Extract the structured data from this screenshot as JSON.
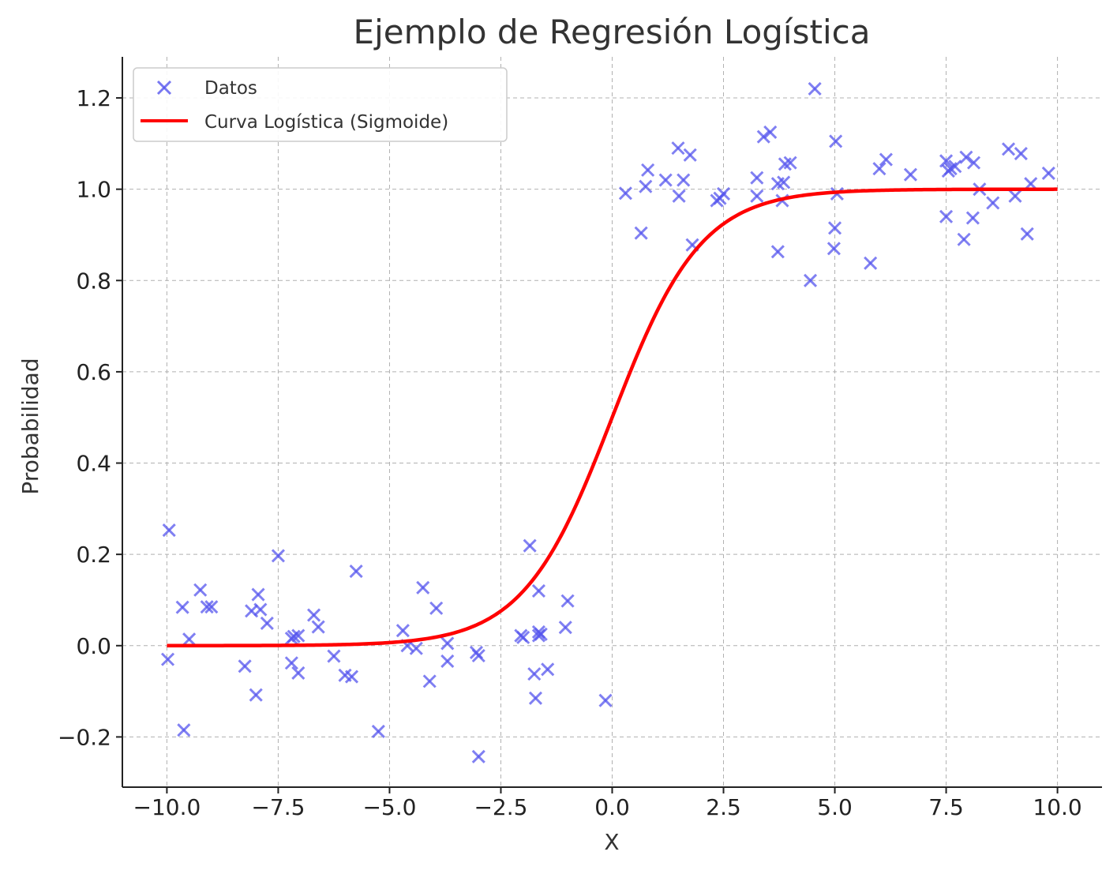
{
  "chart_data": {
    "type": "scatter",
    "title": "Ejemplo de Regresión Logística",
    "xlabel": "X",
    "ylabel": "Probabilidad",
    "xlim": [
      -11,
      11
    ],
    "ylim": [
      -0.31,
      1.29
    ],
    "xticks": [
      -10.0,
      -7.5,
      -5.0,
      -2.5,
      0.0,
      2.5,
      5.0,
      7.5,
      10.0
    ],
    "xtick_labels": [
      "−10.0",
      "−7.5",
      "−5.0",
      "−2.5",
      "0.0",
      "2.5",
      "5.0",
      "7.5",
      "10.0"
    ],
    "yticks": [
      -0.2,
      0.0,
      0.2,
      0.4,
      0.6,
      0.8,
      1.0,
      1.2
    ],
    "ytick_labels": [
      "−0.2",
      "0.0",
      "0.2",
      "0.4",
      "0.6",
      "0.8",
      "1.0",
      "1.2"
    ],
    "grid": true,
    "legend_position": "upper-left",
    "series": [
      {
        "name": "Datos",
        "type": "scatter",
        "marker": "x",
        "color": "#5555ee",
        "points": [
          [
            -9.95,
            0.253
          ],
          [
            -9.98,
            -0.03
          ],
          [
            -9.65,
            0.084
          ],
          [
            -9.62,
            -0.185
          ],
          [
            -9.5,
            0.014
          ],
          [
            -9.25,
            0.122
          ],
          [
            -9.1,
            0.085
          ],
          [
            -9.0,
            0.085
          ],
          [
            -8.25,
            -0.045
          ],
          [
            -8.1,
            0.076
          ],
          [
            -8.0,
            -0.108
          ],
          [
            -7.95,
            0.112
          ],
          [
            -7.9,
            0.079
          ],
          [
            -7.75,
            0.049
          ],
          [
            -7.5,
            0.197
          ],
          [
            -7.2,
            0.016
          ],
          [
            -7.2,
            -0.038
          ],
          [
            -7.15,
            0.02
          ],
          [
            -7.05,
            0.022
          ],
          [
            -7.05,
            -0.06
          ],
          [
            -6.7,
            0.067
          ],
          [
            -6.6,
            0.041
          ],
          [
            -6.25,
            -0.023
          ],
          [
            -6.0,
            -0.065
          ],
          [
            -5.85,
            -0.068
          ],
          [
            -5.75,
            0.163
          ],
          [
            -5.25,
            -0.188
          ],
          [
            -4.7,
            0.033
          ],
          [
            -4.6,
            0.0
          ],
          [
            -4.4,
            -0.006
          ],
          [
            -4.25,
            0.127
          ],
          [
            -4.1,
            -0.078
          ],
          [
            -3.95,
            0.082
          ],
          [
            -3.7,
            0.005
          ],
          [
            -3.7,
            -0.034
          ],
          [
            -3.05,
            -0.015
          ],
          [
            -3.0,
            -0.022
          ],
          [
            -3.0,
            -0.243
          ],
          [
            -2.05,
            0.022
          ],
          [
            -2.0,
            0.018
          ],
          [
            -1.85,
            0.219
          ],
          [
            -1.75,
            -0.062
          ],
          [
            -1.72,
            -0.115
          ],
          [
            -1.65,
            0.12
          ],
          [
            -1.65,
            0.03
          ],
          [
            -1.65,
            0.022
          ],
          [
            -1.6,
            0.025
          ],
          [
            -1.45,
            -0.052
          ],
          [
            -1.05,
            0.04
          ],
          [
            -1.0,
            0.098
          ],
          [
            -0.15,
            -0.12
          ],
          [
            0.3,
            0.991
          ],
          [
            0.65,
            0.904
          ],
          [
            0.75,
            1.006
          ],
          [
            0.8,
            1.042
          ],
          [
            1.2,
            1.02
          ],
          [
            1.48,
            1.09
          ],
          [
            1.5,
            0.985
          ],
          [
            1.6,
            1.02
          ],
          [
            1.75,
            1.075
          ],
          [
            1.8,
            0.878
          ],
          [
            2.35,
            0.975
          ],
          [
            2.42,
            0.98
          ],
          [
            2.5,
            0.99
          ],
          [
            3.25,
            0.985
          ],
          [
            3.25,
            1.025
          ],
          [
            3.4,
            1.115
          ],
          [
            3.55,
            1.125
          ],
          [
            3.72,
            0.863
          ],
          [
            3.72,
            1.012
          ],
          [
            3.82,
            0.975
          ],
          [
            3.85,
            1.015
          ],
          [
            3.88,
            1.055
          ],
          [
            4.0,
            1.058
          ],
          [
            4.45,
            0.8
          ],
          [
            4.55,
            1.22
          ],
          [
            4.98,
            0.87
          ],
          [
            5.0,
            0.915
          ],
          [
            5.02,
            1.105
          ],
          [
            5.05,
            0.99
          ],
          [
            5.8,
            0.838
          ],
          [
            6.0,
            1.045
          ],
          [
            6.15,
            1.065
          ],
          [
            6.7,
            1.032
          ],
          [
            7.5,
            0.94
          ],
          [
            7.5,
            1.062
          ],
          [
            7.55,
            1.04
          ],
          [
            7.6,
            1.045
          ],
          [
            7.7,
            1.05
          ],
          [
            7.9,
            0.89
          ],
          [
            7.95,
            1.07
          ],
          [
            8.1,
            0.937
          ],
          [
            8.12,
            1.058
          ],
          [
            8.25,
            1.0
          ],
          [
            8.55,
            0.97
          ],
          [
            8.9,
            1.088
          ],
          [
            9.05,
            0.985
          ],
          [
            9.18,
            1.078
          ],
          [
            9.32,
            0.902
          ],
          [
            9.4,
            1.012
          ],
          [
            9.8,
            1.035
          ]
        ]
      },
      {
        "name": "Curva Logística (Sigmoide)",
        "type": "line",
        "color": "#ff0000",
        "function": "1 / (1 + exp(-x))",
        "x_range": [
          -10,
          10
        ]
      }
    ]
  }
}
